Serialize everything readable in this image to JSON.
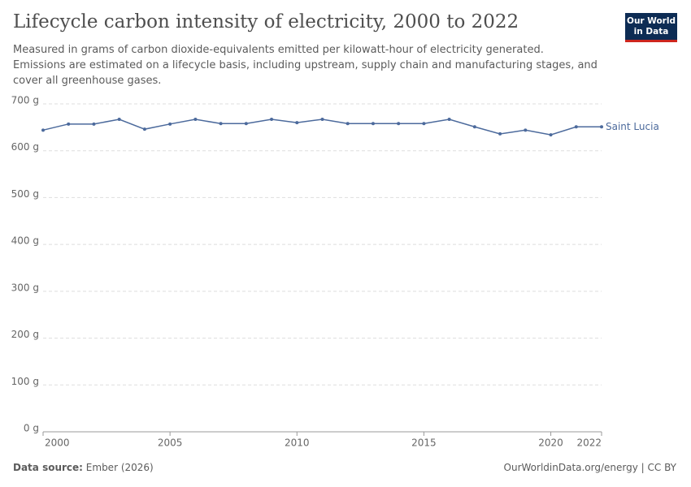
{
  "chart_data": {
    "type": "line",
    "title": "Lifecycle carbon intensity of electricity, 2000 to 2022",
    "subtitle": "Measured in grams of carbon dioxide-equivalents emitted per kilowatt-hour of electricity generated. Emissions are estimated on a lifecycle basis, including upstream, supply chain and manufacturing stages, and cover all greenhouse gases.",
    "logo": [
      "Our World",
      "in Data"
    ],
    "source_label": "Data source:",
    "source": "Ember (2026)",
    "license": "OurWorldinData.org/energy | CC BY",
    "x": [
      2000,
      2001,
      2002,
      2003,
      2004,
      2005,
      2006,
      2007,
      2008,
      2009,
      2010,
      2011,
      2012,
      2013,
      2014,
      2015,
      2016,
      2017,
      2018,
      2019,
      2020,
      2021,
      2022
    ],
    "series": [
      {
        "name": "Saint Lucia",
        "color": "#4c6a9c",
        "values": [
          644,
          657,
          657,
          667,
          646,
          657,
          667,
          658,
          658,
          667,
          660,
          667,
          658,
          658,
          658,
          658,
          667,
          651,
          636,
          644,
          634,
          651,
          651
        ]
      }
    ],
    "xlim": [
      2000,
      2022
    ],
    "xticks": [
      2000,
      2005,
      2010,
      2015,
      2020,
      2022
    ],
    "ylim": [
      0,
      700
    ],
    "yticks": [
      {
        "value": 0,
        "label": "0 g"
      },
      {
        "value": 100,
        "label": "100 g"
      },
      {
        "value": 200,
        "label": "200 g"
      },
      {
        "value": 300,
        "label": "300 g"
      },
      {
        "value": 400,
        "label": "400 g"
      },
      {
        "value": 500,
        "label": "500 g"
      },
      {
        "value": 600,
        "label": "600 g"
      },
      {
        "value": 700,
        "label": "700 g"
      }
    ],
    "grid": true
  }
}
